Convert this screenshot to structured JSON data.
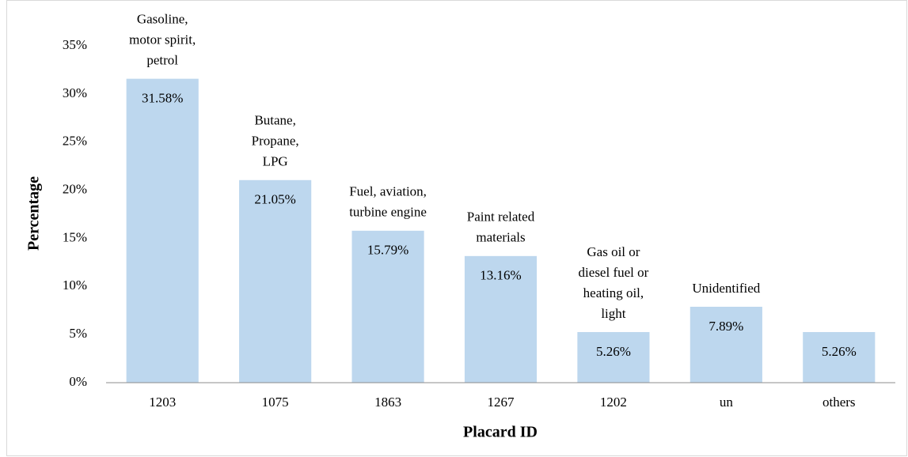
{
  "chart_data": {
    "type": "bar",
    "categories": [
      "1203",
      "1075",
      "1863",
      "1267",
      "1202",
      "un",
      "others"
    ],
    "values": [
      31.58,
      21.05,
      15.79,
      13.16,
      5.26,
      7.89,
      5.26
    ],
    "value_labels": [
      "31.58%",
      "21.05%",
      "15.79%",
      "13.16%",
      "5.26%",
      "7.89%",
      "5.26%"
    ],
    "annotations": [
      [
        "Gasoline,",
        "motor spirit,",
        "petrol"
      ],
      [
        "Butane,",
        "Propane,",
        "LPG"
      ],
      [
        "Fuel, aviation,",
        "turbine engine"
      ],
      [
        "Paint related",
        "materials"
      ],
      [
        "Gas oil or",
        "diesel fuel or",
        "heating oil,",
        "light"
      ],
      [
        "Unidentified"
      ],
      []
    ],
    "color": "#bdd7ee",
    "x_label": "Placard ID",
    "y_label": "Percentage",
    "ylim": [
      0,
      35
    ],
    "yticks": [
      {
        "value": 0,
        "label": "0%"
      },
      {
        "value": 5,
        "label": "5%"
      },
      {
        "value": 10,
        "label": "10%"
      },
      {
        "value": 15,
        "label": "15%"
      },
      {
        "value": 20,
        "label": "20%"
      },
      {
        "value": 25,
        "label": "25%"
      },
      {
        "value": 30,
        "label": "30%"
      },
      {
        "value": 35,
        "label": "35%"
      }
    ],
    "grid": false
  }
}
